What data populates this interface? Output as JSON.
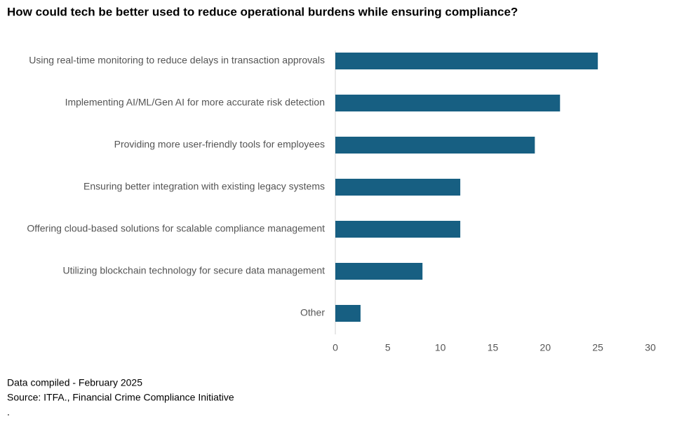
{
  "chart_data": {
    "type": "bar",
    "orientation": "horizontal",
    "title": "How could tech be better used to reduce operational burdens while ensuring compliance?",
    "categories": [
      "Using real-time monitoring to reduce delays in transaction approvals",
      "Implementing AI/ML/Gen AI for more accurate risk detection",
      "Providing more user-friendly tools for employees",
      "Ensuring better integration with existing legacy systems",
      "Offering cloud-based solutions for scalable compliance management",
      "Utilizing blockchain technology for secure data management",
      "Other"
    ],
    "values": [
      25.0,
      21.4,
      19.0,
      11.9,
      11.9,
      8.3,
      2.4
    ],
    "color": "#175f82",
    "xlim": [
      0,
      30
    ],
    "xticks": [
      0,
      5,
      10,
      15,
      20,
      25,
      30
    ],
    "grid": false,
    "notes": [
      "Data compiled - February 2025",
      "Source: ITFA., Financial Crime Compliance Initiative",
      "."
    ]
  }
}
